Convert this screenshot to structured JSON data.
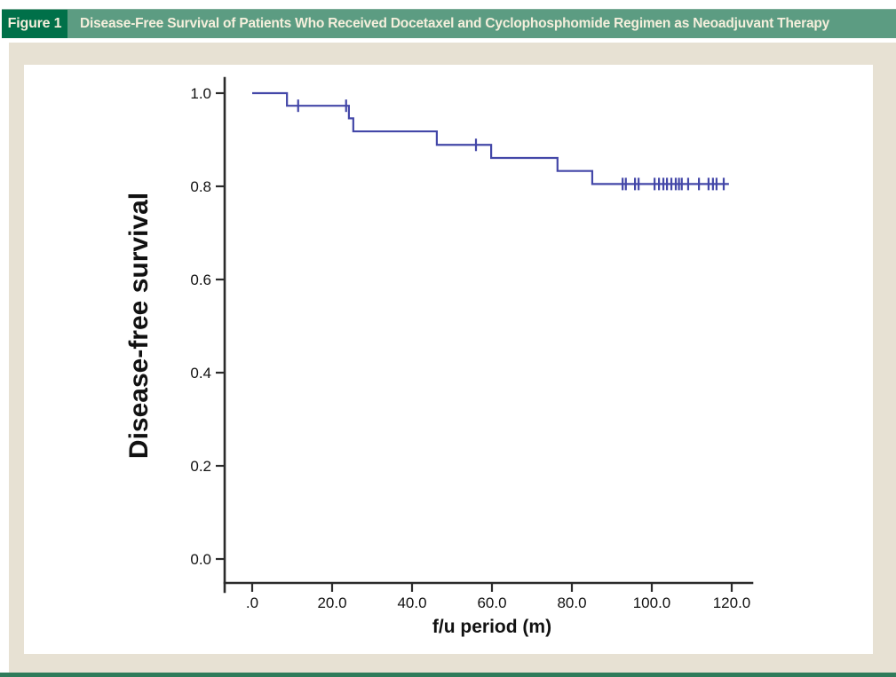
{
  "figure_header": {
    "label": "Figure 1",
    "title": "Disease-Free Survival of Patients Who Received Docetaxel and Cyclophosphomide Regimen as Neoadjuvant Therapy"
  },
  "colors": {
    "header_label_green": "#007049",
    "header_bar_green": "#5c9c82",
    "header_text_cream": "#f5efdc",
    "figure_background_beige": "#e7e1d3",
    "chart_background": "#ffffff",
    "curve_blue": "#4347a8",
    "axis_black": "#2b2b2b",
    "bottom_rule_green": "#2e7b5a"
  },
  "chart_data": {
    "type": "line",
    "subtype": "kaplan-meier-step",
    "title": "",
    "xlabel": "f/u period (m)",
    "ylabel": "Disease-free survival",
    "xlim": [
      0,
      120
    ],
    "ylim": [
      0.0,
      1.0
    ],
    "grid": false,
    "legend": false,
    "x_ticks": {
      "values": [
        0,
        20,
        40,
        60,
        80,
        100,
        120
      ],
      "labels": [
        ".0",
        "20.0",
        "40.0",
        "60.0",
        "80.0",
        "100.0",
        "120.0"
      ]
    },
    "y_ticks": {
      "values": [
        1.0,
        0.8,
        0.6,
        0.4,
        0.2,
        0.0
      ],
      "labels": [
        "1.0",
        "0.8",
        "0.6",
        "0.4",
        "0.2",
        "0.0"
      ]
    },
    "series": [
      {
        "name": "Disease-free survival (Kaplan-Meier estimate)",
        "steps": [
          [
            0,
            1.0
          ],
          [
            8.7,
            0.973
          ],
          [
            24.2,
            0.946
          ],
          [
            25.3,
            0.918
          ],
          [
            46.2,
            0.889
          ],
          [
            59.8,
            0.861
          ],
          [
            76.4,
            0.833
          ],
          [
            85.1,
            0.805
          ]
        ],
        "end_t": 119.3,
        "censored": [
          [
            11.5,
            0.973
          ],
          [
            23.5,
            0.973
          ],
          [
            56.0,
            0.889
          ],
          [
            92.7,
            0.805
          ],
          [
            93.5,
            0.805
          ],
          [
            95.8,
            0.805
          ],
          [
            96.7,
            0.805
          ],
          [
            100.7,
            0.805
          ],
          [
            101.8,
            0.805
          ],
          [
            102.9,
            0.805
          ],
          [
            103.8,
            0.805
          ],
          [
            104.9,
            0.805
          ],
          [
            106.0,
            0.805
          ],
          [
            106.8,
            0.805
          ],
          [
            107.5,
            0.805
          ],
          [
            109.1,
            0.805
          ],
          [
            111.8,
            0.805
          ],
          [
            114.2,
            0.805
          ],
          [
            115.3,
            0.805
          ],
          [
            116.2,
            0.805
          ],
          [
            118.0,
            0.805
          ]
        ]
      }
    ]
  }
}
